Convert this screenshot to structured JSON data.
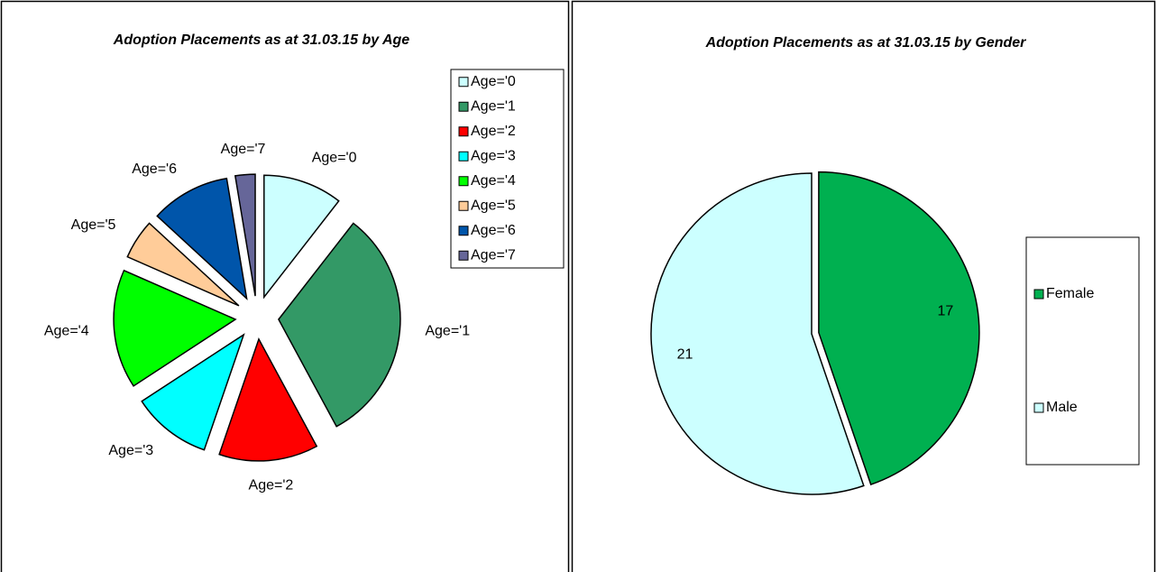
{
  "chart_data": [
    {
      "type": "pie",
      "title": "Adoption Placements as at 31.03.15 by Age",
      "categories": [
        "Age='0",
        "Age='1",
        "Age='2",
        "Age='3",
        "Age='4",
        "Age='5",
        "Age='6",
        "Age='7"
      ],
      "values": [
        4,
        12,
        5,
        4,
        6,
        2,
        4,
        1
      ],
      "colors": [
        "#ccffff",
        "#339966",
        "#ff0000",
        "#00ffff",
        "#00ff00",
        "#ffcc99",
        "#0055aa",
        "#666699"
      ],
      "data_labels": "category",
      "legend": "right-top"
    },
    {
      "type": "pie",
      "title": "Adoption Placements as at 31.03.15 by Gender",
      "categories": [
        "Female",
        "Male"
      ],
      "values": [
        17,
        21
      ],
      "colors": [
        "#00b050",
        "#ccffff"
      ],
      "data_labels": "value",
      "legend": "right-center"
    }
  ]
}
